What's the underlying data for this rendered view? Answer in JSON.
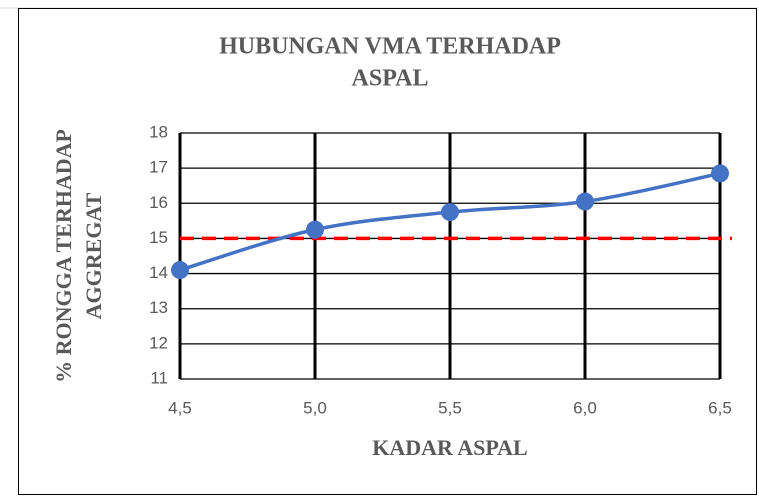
{
  "chart_data": {
    "type": "line",
    "title": [
      "HUBUNGAN VMA TERHADAP",
      "ASPAL"
    ],
    "x_label": "KADAR ASPAL",
    "y_label": [
      "% RONGGA TERHADAP",
      "AGGREGAT"
    ],
    "x": [
      4.5,
      5.0,
      5.5,
      6.0,
      6.5
    ],
    "series": [
      {
        "color": "#4472c4",
        "values": [
          14.1,
          15.25,
          15.75,
          16.05,
          16.85
        ]
      }
    ],
    "hlines": [
      {
        "value": 15,
        "color": "#ff0000"
      }
    ],
    "xlim": [
      4.5,
      6.5
    ],
    "xticks": [
      {
        "value": 4.5,
        "label": "4,5"
      },
      {
        "value": 5.0,
        "label": "5,0"
      },
      {
        "value": 5.5,
        "label": "5,5"
      },
      {
        "value": 6.0,
        "label": "6,0"
      },
      {
        "value": 6.5,
        "label": "6,5"
      }
    ],
    "ylim": [
      11,
      18
    ],
    "yticks": [
      11,
      12,
      13,
      14,
      15,
      16,
      17,
      18
    ],
    "grid": true,
    "smooth": true
  }
}
